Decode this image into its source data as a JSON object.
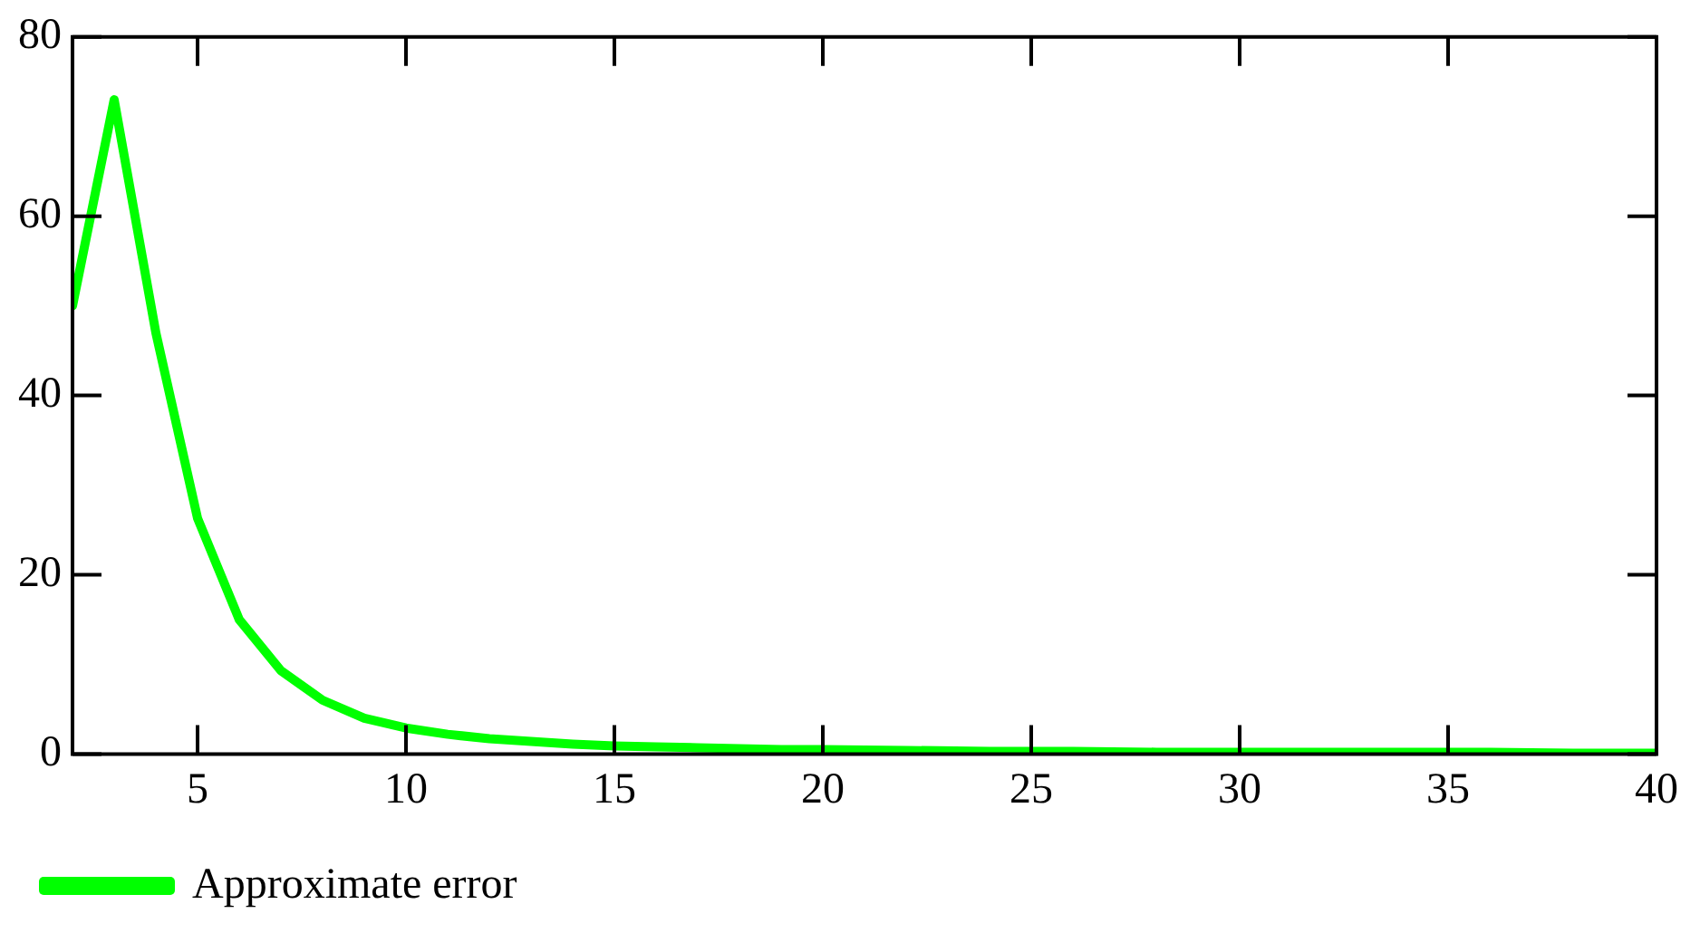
{
  "chart_data": {
    "type": "line",
    "x": [
      2,
      3,
      4,
      5,
      6,
      7,
      8,
      9,
      10,
      11,
      12,
      13,
      14,
      15,
      16,
      17,
      18,
      19,
      20,
      22,
      24,
      26,
      28,
      30,
      32,
      34,
      36,
      38,
      40
    ],
    "series": [
      {
        "name": "Approximate error",
        "color": "#00ff00",
        "values": [
          50,
          73,
          47,
          26.3,
          15,
          9.3,
          6,
          4,
          2.9,
          2.2,
          1.7,
          1.4,
          1.1,
          0.9,
          0.8,
          0.7,
          0.6,
          0.5,
          0.5,
          0.4,
          0.3,
          0.3,
          0.2,
          0.2,
          0.2,
          0.2,
          0.2,
          0.1,
          0.1
        ]
      }
    ],
    "xlim": [
      2,
      40
    ],
    "xticks": [
      5,
      10,
      15,
      20,
      25,
      30,
      35,
      40
    ],
    "ylim": [
      0,
      80
    ],
    "yticks": [
      0,
      20,
      40,
      60,
      80
    ],
    "grid": false,
    "legend": "bottom left",
    "marker": "none",
    "line_style": "solid"
  }
}
